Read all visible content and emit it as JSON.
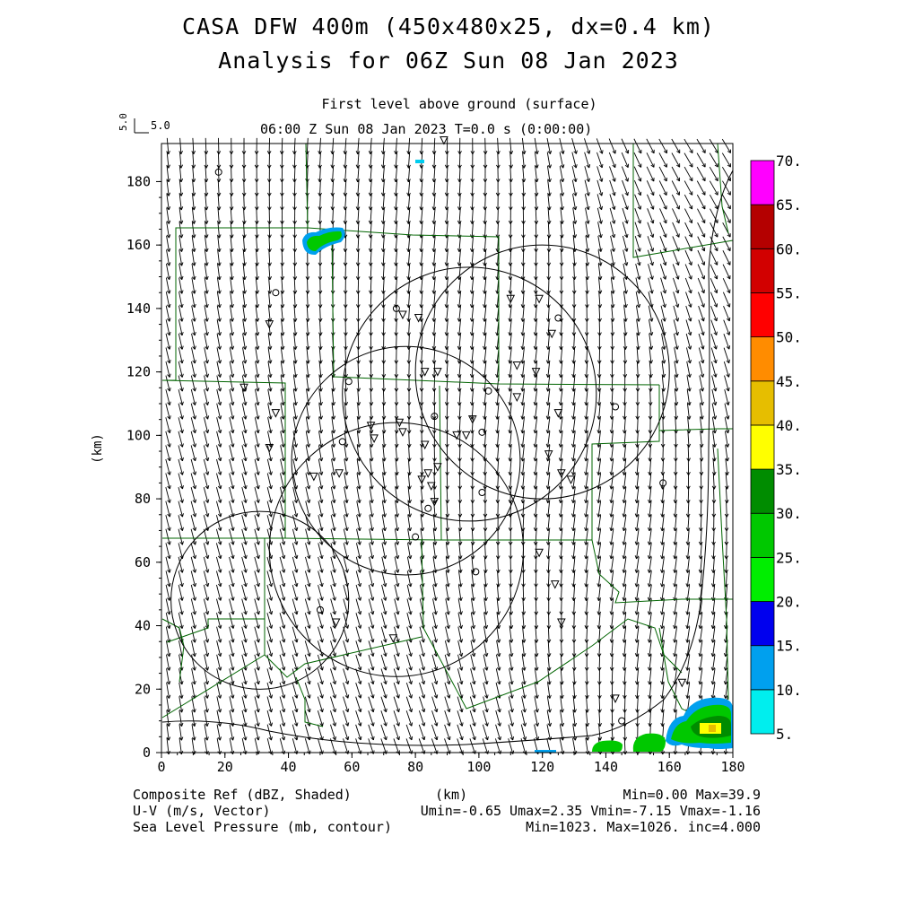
{
  "title": {
    "line1": "CASA DFW 400m (450x480x25, dx=0.4 km)",
    "line2": "Analysis for 06Z Sun 08 Jan 2023"
  },
  "subtitle": {
    "level": "First level above ground (surface)",
    "time": "06:00 Z Sun 08 Jan 2023    T=0.0 s (0:00:00)"
  },
  "vector_key": {
    "value": "5.0",
    "rotated_label": "5.0"
  },
  "axes": {
    "xlabel": "(km)",
    "ylabel": "(km)",
    "x_ticks": [
      "0",
      "20",
      "40",
      "60",
      "80",
      "100",
      "120",
      "140",
      "160",
      "180"
    ],
    "y_ticks": [
      "0",
      "20",
      "40",
      "60",
      "80",
      "100",
      "120",
      "140",
      "160",
      "180"
    ],
    "xlim": [
      0,
      180
    ],
    "ylim": [
      0,
      192
    ]
  },
  "colorbar": {
    "levels": [
      "5.",
      "10.",
      "15.",
      "20.",
      "25.",
      "30.",
      "35.",
      "40.",
      "45.",
      "50.",
      "55.",
      "60.",
      "65.",
      "70."
    ],
    "colors": [
      "#00eeee",
      "#00a0ee",
      "#0000ee",
      "#00ee00",
      "#00c800",
      "#008c00",
      "#ffff00",
      "#e6be00",
      "#ff8c00",
      "#ff0000",
      "#d20000",
      "#b40000",
      "#ff00ff"
    ]
  },
  "footer": {
    "left": [
      "Composite Ref (dBZ, Shaded)",
      "U-V (m/s, Vector)",
      "Sea Level Pressure (mb, contour)"
    ],
    "xunit": "(km)",
    "right": [
      "Min=0.00 Max=39.9",
      "Umin=-0.65 Umax=2.35 Vmin=-7.15 Vmax=-1.16",
      "Min=1023. Max=1026. inc=4.000"
    ]
  },
  "chart_data": {
    "type": "heatmap",
    "fields": [
      "Composite Ref (dBZ, Shaded)",
      "U-V (m/s, Vector)",
      "Sea Level Pressure (mb, contour)"
    ],
    "xlim": [
      0,
      180
    ],
    "ylim": [
      0,
      192
    ],
    "ref_min": 0.0,
    "ref_max": 39.9,
    "u_range": [
      -0.65,
      2.35
    ],
    "v_range": [
      -7.15,
      -1.16
    ],
    "slp_min": 1023.0,
    "slp_max": 1026.0,
    "slp_inc": 4.0,
    "radar_circles_km": [
      {
        "x": 31,
        "y": 48,
        "r": 28
      },
      {
        "x": 74,
        "y": 64,
        "r": 40
      },
      {
        "x": 77,
        "y": 92,
        "r": 36
      },
      {
        "x": 97,
        "y": 113,
        "r": 40
      },
      {
        "x": 120,
        "y": 120,
        "r": 40
      }
    ],
    "echoes_km": [
      {
        "x": 50,
        "y": 161,
        "dbz": 25
      },
      {
        "x": 140,
        "y": 2,
        "dbz": 25
      },
      {
        "x": 152,
        "y": 3,
        "dbz": 25
      },
      {
        "x": 166,
        "y": 7,
        "dbz": 25
      },
      {
        "x": 176,
        "y": 9,
        "dbz": 38
      },
      {
        "x": 83,
        "y": 188,
        "dbz": 5
      }
    ]
  }
}
